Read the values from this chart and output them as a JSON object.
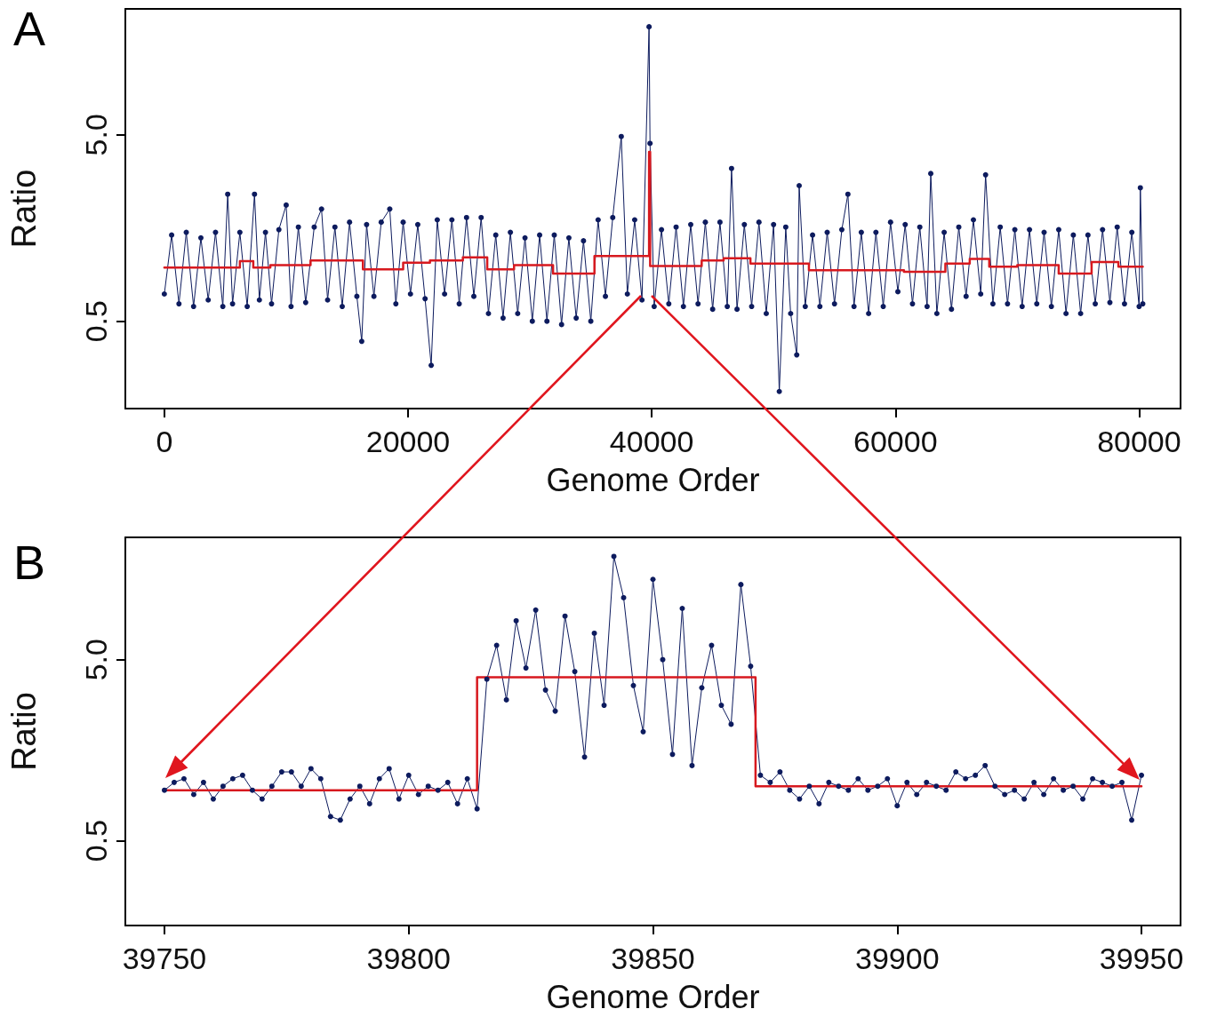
{
  "chart_data": [
    {
      "type": "line",
      "title": "A",
      "xlabel": "Genome Order",
      "ylabel": "Ratio",
      "log": "y",
      "xlim": [
        -3200,
        83400
      ],
      "xticks": [
        0,
        20000,
        40000,
        60000,
        80000
      ],
      "ylim": [
        0.17,
        23.7
      ],
      "yticks": [
        0.5,
        {
          "value": 5,
          "label": "5.0"
        }
      ],
      "series": [
        {
          "type": "line",
          "marker": "circle",
          "color": "#0d1b5e",
          "x": [
            0,
            600,
            1200,
            1800,
            2400,
            3000,
            3600,
            4200,
            4800,
            5200,
            5600,
            6200,
            6800,
            7400,
            7800,
            8300,
            8800,
            9400,
            10000,
            10400,
            11000,
            11600,
            12300,
            12900,
            13400,
            14000,
            14600,
            15200,
            15800,
            16200,
            16600,
            17200,
            17800,
            18500,
            19000,
            19600,
            20200,
            20800,
            21400,
            21900,
            22400,
            23000,
            23600,
            24200,
            24800,
            25400,
            26000,
            26600,
            27200,
            27800,
            28400,
            29000,
            29600,
            30200,
            30800,
            31400,
            32000,
            32600,
            33200,
            33800,
            34400,
            35000,
            35600,
            36200,
            36800,
            37500,
            38000,
            38600,
            39200,
            39780,
            39860,
            40200,
            40800,
            41400,
            42000,
            42600,
            43200,
            43800,
            44400,
            45000,
            45600,
            46200,
            46550,
            47000,
            47600,
            48200,
            48800,
            49400,
            50000,
            50470,
            51000,
            51400,
            51900,
            52100,
            52600,
            53200,
            53800,
            54400,
            55000,
            55600,
            56100,
            56600,
            57200,
            57800,
            58400,
            59000,
            59600,
            60200,
            60800,
            61400,
            62000,
            62600,
            62900,
            63400,
            64000,
            64600,
            65200,
            65800,
            66400,
            67000,
            67400,
            68000,
            68600,
            69200,
            69800,
            70400,
            71000,
            71600,
            72200,
            72800,
            73400,
            74000,
            74600,
            75200,
            75800,
            76400,
            77000,
            77600,
            78200,
            78800,
            79400,
            80000,
            80100,
            80300
          ],
          "values": [
            0.7,
            1.45,
            0.62,
            1.5,
            0.6,
            1.4,
            0.65,
            1.5,
            0.6,
            2.4,
            0.62,
            1.5,
            0.6,
            2.4,
            0.65,
            1.5,
            0.62,
            1.55,
            2.1,
            0.6,
            1.6,
            0.63,
            1.6,
            2.0,
            0.65,
            1.6,
            0.6,
            1.7,
            0.68,
            0.39,
            1.65,
            0.68,
            1.7,
            2.0,
            0.62,
            1.7,
            0.7,
            1.65,
            0.66,
            0.29,
            1.75,
            0.7,
            1.75,
            0.62,
            1.8,
            0.68,
            1.8,
            0.55,
            1.45,
            0.52,
            1.5,
            0.55,
            1.4,
            0.5,
            1.45,
            0.5,
            1.45,
            0.48,
            1.4,
            0.52,
            1.35,
            0.5,
            1.75,
            0.68,
            1.8,
            4.9,
            0.7,
            1.75,
            0.65,
            19.0,
            4.5,
            0.6,
            1.55,
            0.62,
            1.6,
            0.6,
            1.65,
            0.62,
            1.7,
            0.58,
            1.7,
            0.6,
            3.3,
            0.58,
            1.65,
            0.6,
            1.7,
            0.55,
            1.65,
            0.21,
            1.6,
            0.55,
            0.33,
            2.67,
            0.6,
            1.45,
            0.6,
            1.5,
            0.62,
            1.55,
            2.4,
            0.6,
            1.5,
            0.55,
            1.5,
            0.6,
            1.7,
            0.72,
            1.65,
            0.62,
            1.6,
            0.6,
            3.1,
            0.55,
            1.5,
            0.58,
            1.6,
            0.68,
            1.75,
            0.7,
            3.05,
            0.62,
            1.6,
            0.62,
            1.55,
            0.6,
            1.55,
            0.62,
            1.5,
            0.6,
            1.55,
            0.55,
            1.45,
            0.55,
            1.45,
            0.62,
            1.55,
            0.63,
            1.6,
            0.62,
            1.5,
            0.6,
            2.6,
            0.62
          ]
        },
        {
          "type": "step",
          "marker": "none",
          "color": "#d7191f",
          "x": [
            0,
            6200,
            7300,
            8700,
            12000,
            16300,
            19600,
            21800,
            24500,
            26500,
            28700,
            31900,
            35300,
            39780,
            39870,
            44100,
            45900,
            48100,
            52900,
            60700,
            64100,
            66100,
            67700,
            70000,
            73400,
            76100,
            78300,
            80300
          ],
          "values": [
            0.97,
            1.05,
            0.97,
            1.0,
            1.06,
            0.95,
            1.03,
            1.06,
            1.1,
            0.95,
            1.0,
            0.9,
            1.12,
            4.05,
            0.99,
            1.06,
            1.09,
            1.02,
            0.94,
            0.92,
            1.02,
            1.08,
            0.98,
            1.0,
            0.9,
            1.04,
            0.98,
            0.98
          ]
        }
      ]
    },
    {
      "type": "line",
      "title": "B",
      "xlabel": "Genome Order",
      "ylabel": "Ratio",
      "log": "y",
      "xlim": [
        39742,
        39958
      ],
      "xticks": [
        39750,
        39800,
        39850,
        39900,
        39950
      ],
      "ylim": [
        0.17,
        23.7
      ],
      "yticks": [
        0.5,
        {
          "value": 5,
          "label": "5.0"
        }
      ],
      "series": [
        {
          "type": "line",
          "marker": "circle",
          "color": "#0d1b5e",
          "x": [
            39750,
            39752,
            39754,
            39756,
            39758,
            39760,
            39762,
            39764,
            39766,
            39768,
            39770,
            39772,
            39774,
            39776,
            39778,
            39780,
            39782,
            39784,
            39786,
            39788,
            39790,
            39792,
            39794,
            39796,
            39798,
            39800,
            39802,
            39804,
            39806,
            39808,
            39810,
            39812,
            39814,
            39816,
            39818,
            39820,
            39822,
            39824,
            39826,
            39828,
            39830,
            39832,
            39834,
            39836,
            39838,
            39840,
            39842,
            39844,
            39846,
            39848,
            39850,
            39852,
            39854,
            39856,
            39858,
            39860,
            39862,
            39864,
            39866,
            39868,
            39870,
            39872,
            39874,
            39876,
            39878,
            39880,
            39882,
            39884,
            39886,
            39888,
            39890,
            39892,
            39894,
            39896,
            39898,
            39900,
            39902,
            39904,
            39906,
            39908,
            39910,
            39912,
            39914,
            39916,
            39918,
            39920,
            39922,
            39924,
            39926,
            39928,
            39930,
            39932,
            39934,
            39936,
            39938,
            39940,
            39942,
            39944,
            39946,
            39948,
            39950
          ],
          "values": [
            0.95,
            1.05,
            1.1,
            0.9,
            1.05,
            0.85,
            1.0,
            1.1,
            1.15,
            0.95,
            0.85,
            1.0,
            1.2,
            1.2,
            1.0,
            1.25,
            1.1,
            0.68,
            0.65,
            0.85,
            1.0,
            0.8,
            1.1,
            1.25,
            0.85,
            1.15,
            0.9,
            1.0,
            0.95,
            1.05,
            0.8,
            1.1,
            0.75,
            3.9,
            6.0,
            3.0,
            8.2,
            4.5,
            9.4,
            3.4,
            2.6,
            8.7,
            4.3,
            1.45,
            7.0,
            2.8,
            18.6,
            11.0,
            3.6,
            2.0,
            13.9,
            5.0,
            1.5,
            9.6,
            1.3,
            3.5,
            6.0,
            2.8,
            2.2,
            13.0,
            4.6,
            1.15,
            1.05,
            1.2,
            0.95,
            0.85,
            1.0,
            0.8,
            1.05,
            1.0,
            0.95,
            1.1,
            0.95,
            1.0,
            1.1,
            0.78,
            1.05,
            0.9,
            1.05,
            1.0,
            0.95,
            1.2,
            1.1,
            1.15,
            1.3,
            1.0,
            0.9,
            0.95,
            0.85,
            1.05,
            0.9,
            1.1,
            0.95,
            1.0,
            0.85,
            1.1,
            1.05,
            1.0,
            1.05,
            0.65,
            1.15
          ]
        },
        {
          "type": "step",
          "marker": "none",
          "color": "#d7191f",
          "x": [
            39750,
            39814,
            39871,
            39950
          ],
          "values": [
            0.95,
            4.0,
            1.0,
            1.0
          ]
        }
      ]
    }
  ]
}
